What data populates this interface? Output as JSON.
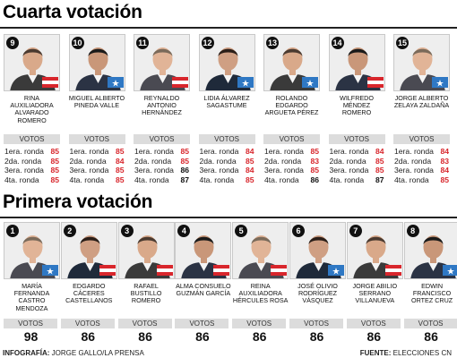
{
  "section_top": {
    "title": "Cuarta votación",
    "votos_label": "VOTOS",
    "round_labels": [
      "1era. ronda",
      "2da. ronda",
      "3era. ronda",
      "4ta. ronda"
    ],
    "candidates": [
      {
        "number": "9",
        "name": "RINA AUXILIADORA ALVARADO ROMERO",
        "flag": "honduras",
        "rounds": [
          "85",
          "85",
          "85",
          "85"
        ],
        "colors": [
          "red",
          "red",
          "red",
          "red"
        ]
      },
      {
        "number": "10",
        "name": "MIGUEL ALBERTO PINEDA VALLE",
        "flag": "blue",
        "rounds": [
          "85",
          "84",
          "85",
          "85"
        ],
        "colors": [
          "red",
          "red",
          "red",
          "red"
        ]
      },
      {
        "number": "11",
        "name": "REYNALDO ANTONIO HERNÁNDEZ",
        "flag": "honduras",
        "rounds": [
          "85",
          "85",
          "86",
          "87"
        ],
        "colors": [
          "red",
          "red",
          "black",
          "black"
        ]
      },
      {
        "number": "12",
        "name": "LIDIA ÁLVAREZ SAGASTUME",
        "flag": "blue",
        "rounds": [
          "84",
          "85",
          "84",
          "85"
        ],
        "colors": [
          "red",
          "red",
          "red",
          "red"
        ]
      },
      {
        "number": "13",
        "name": "ROLANDO EDGARDO ARGUETA PÉREZ",
        "flag": "blue",
        "rounds": [
          "85",
          "83",
          "85",
          "86"
        ],
        "colors": [
          "red",
          "red",
          "red",
          "black"
        ]
      },
      {
        "number": "14",
        "name": "WILFREDO MÉNDEZ ROMERO",
        "flag": "honduras",
        "rounds": [
          "84",
          "85",
          "85",
          "87"
        ],
        "colors": [
          "red",
          "red",
          "red",
          "black"
        ]
      },
      {
        "number": "15",
        "name": "JORGE ALBERTO ZELAYA ZALDAÑA",
        "flag": "blue",
        "rounds": [
          "84",
          "83",
          "84",
          "85"
        ],
        "colors": [
          "red",
          "red",
          "red",
          "red"
        ]
      }
    ]
  },
  "section_bottom": {
    "title": "Primera votación",
    "candidates": [
      {
        "number": "1",
        "name": "MARÍA FERNANDA CASTRO MENDOZA",
        "flag": "blue",
        "total": "98"
      },
      {
        "number": "2",
        "name": "EDGARDO CÁCERES CASTELLANOS",
        "flag": "honduras",
        "total": "86"
      },
      {
        "number": "3",
        "name": "RAFAEL BUSTILLO ROMERO",
        "flag": "honduras",
        "total": "86"
      },
      {
        "number": "4",
        "name": "ALMA CONSUELO GUZMÁN GARCÍA",
        "flag": "honduras",
        "total": "86"
      },
      {
        "number": "5",
        "name": "REINA AUXILIADORA HÉRCULES ROSA",
        "flag": "honduras",
        "total": "86"
      },
      {
        "number": "6",
        "name": "JOSÉ OLIVIO RODRÍGUEZ VÁSQUEZ",
        "flag": "blue",
        "total": "86"
      },
      {
        "number": "7",
        "name": "JORGE ABILIO SERRANO VILLANUEVA",
        "flag": "honduras",
        "total": "86"
      },
      {
        "number": "8",
        "name": "EDWIN FRANCISCO ORTEZ CRUZ",
        "flag": "blue",
        "total": "86"
      }
    ]
  },
  "footer": {
    "infografia_label": "INFOGRAFÍA:",
    "infografia_value": " JORGE GALLO/LA PRENSA",
    "fuente_label": "FUENTE:",
    "fuente_value": " ELECCIONES CN"
  },
  "colors": {
    "red_value": "#d8262c",
    "flag_red": "#d8262c",
    "flag_blue": "#2f78c4",
    "votos_bg": "#dcdcdc"
  }
}
